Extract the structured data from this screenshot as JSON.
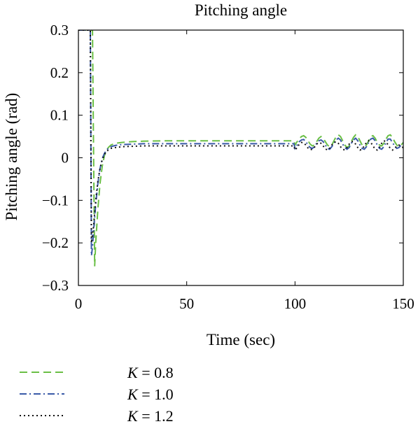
{
  "chart_data": {
    "type": "line",
    "title": "Pitching angle",
    "xlabel": "Time (sec)",
    "ylabel": "Pitching angle (rad)",
    "xlim": [
      0,
      150
    ],
    "ylim": [
      -0.3,
      0.3
    ],
    "xticks": [
      0,
      50,
      100,
      150
    ],
    "xtick_labels": [
      "0",
      "50",
      "100",
      "150"
    ],
    "yticks": [
      0.3,
      0.2,
      0.1,
      0,
      -0.1,
      -0.2,
      -0.3
    ],
    "ytick_labels": [
      "0.3",
      "0.2",
      "0.1",
      "0",
      "−0.1",
      "−0.2",
      "−0.3"
    ],
    "grid": false,
    "legend_position": "bottom-left, below plot",
    "series": [
      {
        "name": "K = 0.8",
        "legend_var": "K",
        "legend_rest": " = 0.8",
        "color": "#6abf45",
        "dash": "dashed",
        "x": [
          0,
          0.5,
          1,
          1.5,
          2,
          3,
          4,
          5,
          5.5,
          6,
          6.5,
          7,
          7.5,
          8,
          9,
          10,
          11,
          12,
          13,
          14,
          15,
          17,
          20,
          25,
          30,
          40,
          50,
          60,
          70,
          80,
          90,
          99.5,
          100,
          101,
          102,
          103,
          104,
          105,
          106,
          107,
          108,
          109,
          110,
          111,
          112,
          113,
          114,
          115,
          116,
          117,
          118,
          119,
          120,
          121,
          122,
          123,
          124,
          125,
          126,
          127,
          128,
          129,
          130,
          131,
          132,
          133,
          134,
          135,
          136,
          137,
          138,
          139,
          140,
          141,
          142,
          143,
          144,
          145,
          146,
          147,
          148,
          149,
          150
        ],
        "y": [
          0.3,
          0.3,
          0.3,
          0.3,
          0.3,
          0.3,
          0.3,
          0.3,
          0.3,
          0.3,
          0.3,
          0.0,
          -0.255,
          -0.2,
          -0.12,
          -0.06,
          -0.02,
          0.005,
          0.018,
          0.025,
          0.03,
          0.034,
          0.036,
          0.038,
          0.039,
          0.04,
          0.04,
          0.04,
          0.04,
          0.04,
          0.04,
          0.04,
          0.03,
          0.038,
          0.045,
          0.05,
          0.052,
          0.048,
          0.04,
          0.032,
          0.028,
          0.03,
          0.038,
          0.046,
          0.05,
          0.046,
          0.038,
          0.03,
          0.026,
          0.03,
          0.04,
          0.05,
          0.054,
          0.05,
          0.04,
          0.03,
          0.024,
          0.028,
          0.038,
          0.048,
          0.054,
          0.05,
          0.04,
          0.03,
          0.026,
          0.03,
          0.04,
          0.05,
          0.052,
          0.046,
          0.036,
          0.03,
          0.028,
          0.034,
          0.044,
          0.052,
          0.054,
          0.048,
          0.038,
          0.03,
          0.026,
          0.03,
          0.036
        ]
      },
      {
        "name": "K = 1.0",
        "legend_var": "K",
        "legend_rest": " = 1.0",
        "color": "#3a5aa8",
        "dash": "dash-dot",
        "x": [
          0,
          0.5,
          1,
          1.5,
          2,
          2.5,
          3,
          3.5,
          4,
          4.5,
          5,
          5.5,
          6,
          6.5,
          7,
          8,
          9,
          10,
          11,
          12,
          13,
          14,
          15,
          17,
          20,
          25,
          30,
          40,
          50,
          60,
          70,
          80,
          90,
          99.5,
          100,
          101,
          102,
          103,
          104,
          105,
          106,
          107,
          108,
          109,
          110,
          111,
          112,
          113,
          114,
          115,
          116,
          117,
          118,
          119,
          120,
          121,
          122,
          123,
          124,
          125,
          126,
          127,
          128,
          129,
          130,
          131,
          132,
          133,
          134,
          135,
          136,
          137,
          138,
          139,
          140,
          141,
          142,
          143,
          144,
          145,
          146,
          147,
          148,
          149,
          150
        ],
        "y": [
          0.3,
          0.3,
          0.3,
          0.3,
          0.3,
          0.3,
          0.3,
          0.3,
          0.3,
          0.3,
          0.3,
          0.3,
          -0.23,
          -0.21,
          -0.17,
          -0.11,
          -0.06,
          -0.025,
          -0.002,
          0.01,
          0.018,
          0.023,
          0.026,
          0.029,
          0.031,
          0.032,
          0.033,
          0.033,
          0.033,
          0.033,
          0.033,
          0.033,
          0.033,
          0.033,
          0.022,
          0.03,
          0.038,
          0.042,
          0.043,
          0.038,
          0.03,
          0.024,
          0.022,
          0.026,
          0.034,
          0.04,
          0.042,
          0.038,
          0.03,
          0.022,
          0.02,
          0.026,
          0.034,
          0.042,
          0.046,
          0.042,
          0.032,
          0.024,
          0.02,
          0.024,
          0.034,
          0.042,
          0.046,
          0.04,
          0.03,
          0.022,
          0.02,
          0.026,
          0.036,
          0.044,
          0.046,
          0.04,
          0.03,
          0.022,
          0.02,
          0.026,
          0.036,
          0.044,
          0.044,
          0.036,
          0.028,
          0.022,
          0.024,
          0.03,
          0.034
        ]
      },
      {
        "name": "K = 1.2",
        "legend_var": "K",
        "legend_rest": " = 1.2",
        "color": "#111111",
        "dash": "dotted",
        "x": [
          0,
          0.5,
          1,
          1.5,
          2,
          2.5,
          3,
          3.5,
          4,
          4.5,
          5,
          5.5,
          6,
          7,
          8,
          9,
          10,
          11,
          12,
          13,
          14,
          15,
          17,
          20,
          25,
          30,
          40,
          50,
          60,
          70,
          80,
          90,
          99.5,
          100,
          101,
          102,
          103,
          104,
          105,
          106,
          107,
          108,
          109,
          110,
          111,
          112,
          113,
          114,
          115,
          116,
          117,
          118,
          119,
          120,
          121,
          122,
          123,
          124,
          125,
          126,
          127,
          128,
          129,
          130,
          131,
          132,
          133,
          134,
          135,
          136,
          137,
          138,
          139,
          140,
          141,
          142,
          143,
          144,
          145,
          146,
          147,
          148,
          149,
          150
        ],
        "y": [
          0.3,
          0.3,
          0.3,
          0.3,
          0.3,
          0.3,
          0.3,
          0.3,
          0.3,
          0.3,
          0.3,
          0.3,
          -0.2,
          -0.16,
          -0.1,
          -0.055,
          -0.025,
          -0.005,
          0.008,
          0.015,
          0.019,
          0.022,
          0.024,
          0.026,
          0.027,
          0.028,
          0.028,
          0.028,
          0.028,
          0.028,
          0.028,
          0.028,
          0.028,
          0.018,
          0.024,
          0.032,
          0.036,
          0.035,
          0.03,
          0.023,
          0.019,
          0.02,
          0.025,
          0.032,
          0.036,
          0.034,
          0.028,
          0.021,
          0.018,
          0.022,
          0.03,
          0.036,
          0.038,
          0.034,
          0.026,
          0.02,
          0.018,
          0.024,
          0.032,
          0.038,
          0.038,
          0.032,
          0.024,
          0.018,
          0.02,
          0.028,
          0.036,
          0.04,
          0.036,
          0.028,
          0.02,
          0.018,
          0.024,
          0.034,
          0.04,
          0.038,
          0.03,
          0.022,
          0.018,
          0.022,
          0.028,
          0.03,
          0.026,
          0.024
        ]
      }
    ]
  }
}
